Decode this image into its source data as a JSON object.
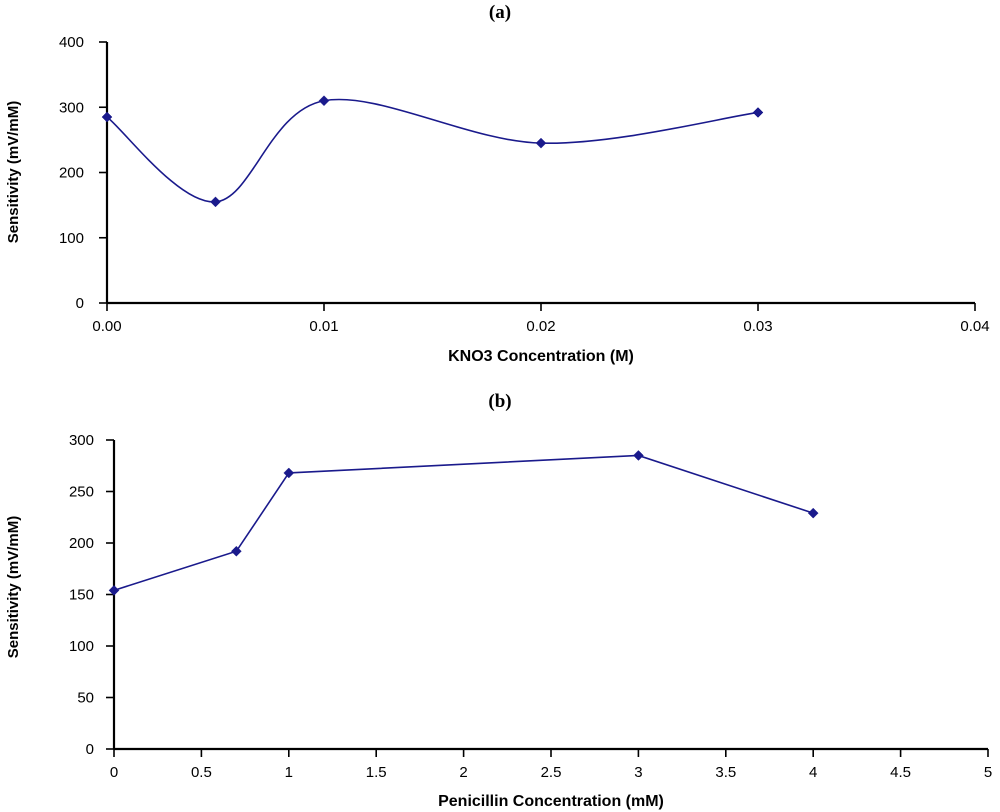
{
  "colors": {
    "series": "#1a1a8c",
    "axis": "#000000"
  },
  "chart_data": [
    {
      "type": "line",
      "panel": "(a)",
      "xlabel": "KNO3 Concentration (M)",
      "ylabel": "Sensitivity (mV/mM)",
      "xlim": [
        0,
        0.04
      ],
      "ylim": [
        0,
        400
      ],
      "x_ticks": [
        "0.00",
        "0.01",
        "0.02",
        "0.03",
        "0.04"
      ],
      "y_ticks": [
        "0",
        "100",
        "200",
        "300",
        "400"
      ],
      "smooth": true,
      "series": [
        {
          "x": [
            0,
            0.005,
            0.01,
            0.02,
            0.03
          ],
          "y": [
            285,
            155,
            310,
            245,
            292
          ]
        }
      ]
    },
    {
      "type": "line",
      "panel": "(b)",
      "xlabel": "Penicillin Concentration (mM)",
      "ylabel": "Sensitivity (mV/mM)",
      "xlim": [
        0,
        5
      ],
      "ylim": [
        0,
        300
      ],
      "x_ticks": [
        "0",
        "0.5",
        "1",
        "1.5",
        "2",
        "2.5",
        "3",
        "3.5",
        "4",
        "4.5",
        "5"
      ],
      "y_ticks": [
        "0",
        "50",
        "100",
        "150",
        "200",
        "250",
        "300"
      ],
      "smooth": false,
      "series": [
        {
          "x": [
            0,
            0.7,
            1,
            3,
            4
          ],
          "y": [
            154,
            192,
            268,
            285,
            229
          ]
        }
      ]
    }
  ]
}
